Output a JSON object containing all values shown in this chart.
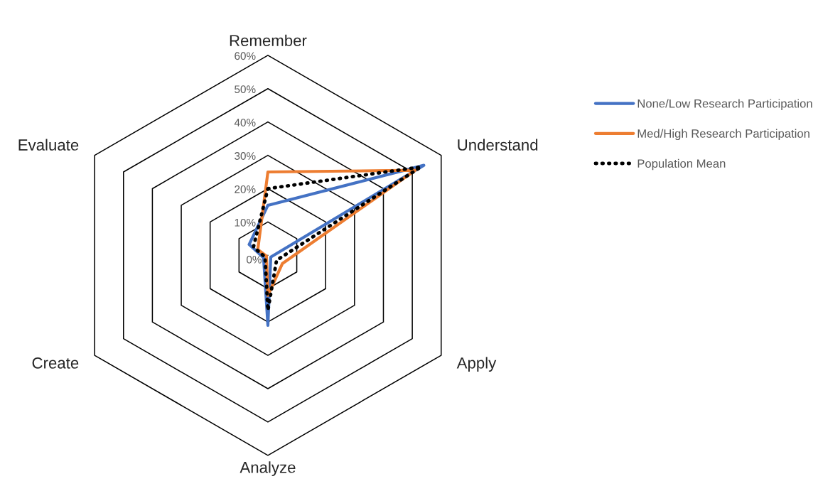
{
  "chart_data": {
    "type": "radar",
    "categories": [
      "Remember",
      "Understand",
      "Apply",
      "Analyze",
      "Create",
      "Evaluate"
    ],
    "series": [
      {
        "name": "None/Low Research Participation",
        "color": "#4472c4",
        "values": [
          15,
          54,
          1,
          21,
          1.5,
          6.5
        ]
      },
      {
        "name": "Med/High Research Participation",
        "color": "#ed7d31",
        "values": [
          25,
          51,
          5,
          12,
          0.5,
          3.5
        ]
      },
      {
        "name": "Population Mean",
        "color": "#000000",
        "values": [
          20,
          53,
          3,
          16.5,
          1,
          5
        ],
        "line_style": "dotted"
      }
    ],
    "ylim": [
      0,
      60
    ],
    "yticks": [
      {
        "value": 0,
        "label": "0%"
      },
      {
        "value": 10,
        "label": "10%"
      },
      {
        "value": 20,
        "label": "20%"
      },
      {
        "value": 30,
        "label": "30%"
      },
      {
        "value": 40,
        "label": "40%"
      },
      {
        "value": 50,
        "label": "50%"
      },
      {
        "value": 60,
        "label": "60%"
      }
    ],
    "legend": "right",
    "grid": true
  }
}
